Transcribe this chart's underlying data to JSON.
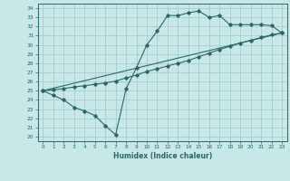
{
  "xlabel": "Humidex (Indice chaleur)",
  "xlim": [
    -0.5,
    23.5
  ],
  "ylim": [
    19.5,
    34.5
  ],
  "xticks": [
    0,
    1,
    2,
    3,
    4,
    5,
    6,
    7,
    8,
    9,
    10,
    11,
    12,
    13,
    14,
    15,
    16,
    17,
    18,
    19,
    20,
    21,
    22,
    23
  ],
  "yticks": [
    20,
    21,
    22,
    23,
    24,
    25,
    26,
    27,
    28,
    29,
    30,
    31,
    32,
    33,
    34
  ],
  "bg_color": "#c8e8e8",
  "line_color": "#2a6868",
  "grid_color": "#a0c8c8",
  "line1_x": [
    0,
    1,
    2,
    3,
    4,
    5,
    6,
    7,
    8,
    9,
    10,
    11,
    12,
    13,
    14,
    15,
    16,
    17,
    18,
    19,
    20,
    21,
    22,
    23
  ],
  "line1_y": [
    25.0,
    24.5,
    24.0,
    23.2,
    22.8,
    22.3,
    21.2,
    20.2,
    25.2,
    27.5,
    30.0,
    31.5,
    33.2,
    33.2,
    33.5,
    33.7,
    33.0,
    33.2,
    32.2,
    32.2,
    32.2,
    32.2,
    32.1,
    31.3
  ],
  "line2_x": [
    0,
    1,
    2,
    3,
    4,
    5,
    6,
    7,
    8,
    9,
    10,
    11,
    12,
    13,
    14,
    15,
    16,
    17,
    18,
    19,
    20,
    21,
    22,
    23
  ],
  "line2_y": [
    25.0,
    25.1,
    25.25,
    25.4,
    25.55,
    25.7,
    25.85,
    26.05,
    26.4,
    26.7,
    27.1,
    27.4,
    27.7,
    28.0,
    28.3,
    28.7,
    29.1,
    29.5,
    29.85,
    30.2,
    30.5,
    30.8,
    31.1,
    31.3
  ],
  "line3_x": [
    0,
    23
  ],
  "line3_y": [
    25.0,
    31.3
  ]
}
